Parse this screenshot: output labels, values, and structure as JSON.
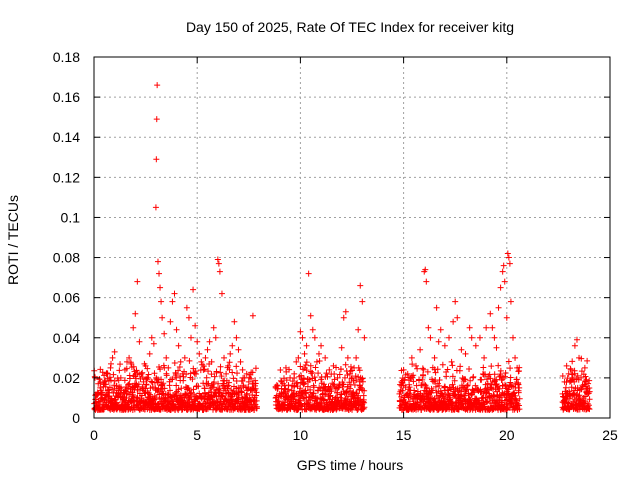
{
  "chart_data": {
    "type": "scatter",
    "title": "Day 150 of 2025, Rate Of TEC Index for receiver kitg",
    "xlabel": "GPS time / hours",
    "ylabel": "ROTI / TECUs",
    "xlim": [
      0,
      25
    ],
    "ylim": [
      0,
      0.18
    ],
    "x_ticks": [
      0,
      5,
      10,
      15,
      20,
      25
    ],
    "x_tick_labels": [
      "0",
      "5",
      "10",
      "15",
      "20",
      "25"
    ],
    "y_ticks": [
      0,
      0.02,
      0.04,
      0.06,
      0.08,
      0.1,
      0.12,
      0.14,
      0.16,
      0.18
    ],
    "y_tick_labels": [
      "0",
      "0.02",
      "0.04",
      "0.06",
      "0.08",
      "0.1",
      "0.12",
      "0.14",
      "0.16",
      "0.18"
    ],
    "grid": true,
    "marker": "+",
    "color": "#ff0000",
    "series": [
      {
        "name": "ROTI",
        "points": [
          [
            0.1,
            0.008
          ],
          [
            0.2,
            0.012
          ],
          [
            0.3,
            0.015
          ],
          [
            0.4,
            0.01
          ],
          [
            0.5,
            0.018
          ],
          [
            0.6,
            0.022
          ],
          [
            0.7,
            0.014
          ],
          [
            0.8,
            0.025
          ],
          [
            0.9,
            0.03
          ],
          [
            1.0,
            0.033
          ],
          [
            1.1,
            0.016
          ],
          [
            1.2,
            0.012
          ],
          [
            1.3,
            0.02
          ],
          [
            1.4,
            0.009
          ],
          [
            1.5,
            0.024
          ],
          [
            1.6,
            0.028
          ],
          [
            1.7,
            0.03
          ],
          [
            1.8,
            0.027
          ],
          [
            1.9,
            0.045
          ],
          [
            2.0,
            0.052
          ],
          [
            2.1,
            0.068
          ],
          [
            2.2,
            0.038
          ],
          [
            2.3,
            0.022
          ],
          [
            2.4,
            0.018
          ],
          [
            2.5,
            0.026
          ],
          [
            2.6,
            0.02
          ],
          [
            2.7,
            0.032
          ],
          [
            2.8,
            0.04
          ],
          [
            2.9,
            0.037
          ],
          [
            3.0,
            0.105
          ],
          [
            3.02,
            0.129
          ],
          [
            3.04,
            0.149
          ],
          [
            3.06,
            0.166
          ],
          [
            3.1,
            0.078
          ],
          [
            3.15,
            0.072
          ],
          [
            3.2,
            0.065
          ],
          [
            3.25,
            0.058
          ],
          [
            3.3,
            0.05
          ],
          [
            3.4,
            0.042
          ],
          [
            3.5,
            0.03
          ],
          [
            3.6,
            0.025
          ],
          [
            3.7,
            0.048
          ],
          [
            3.8,
            0.058
          ],
          [
            3.9,
            0.062
          ],
          [
            4.0,
            0.044
          ],
          [
            4.1,
            0.036
          ],
          [
            4.2,
            0.028
          ],
          [
            4.3,
            0.022
          ],
          [
            4.4,
            0.03
          ],
          [
            4.5,
            0.055
          ],
          [
            4.6,
            0.05
          ],
          [
            4.7,
            0.04
          ],
          [
            4.8,
            0.064
          ],
          [
            4.9,
            0.046
          ],
          [
            5.0,
            0.038
          ],
          [
            5.1,
            0.032
          ],
          [
            5.2,
            0.028
          ],
          [
            5.3,
            0.024
          ],
          [
            5.4,
            0.03
          ],
          [
            5.5,
            0.034
          ],
          [
            5.6,
            0.038
          ],
          [
            5.7,
            0.028
          ],
          [
            5.8,
            0.045
          ],
          [
            5.9,
            0.04
          ],
          [
            6.0,
            0.079
          ],
          [
            6.05,
            0.077
          ],
          [
            6.1,
            0.073
          ],
          [
            6.2,
            0.062
          ],
          [
            6.3,
            0.03
          ],
          [
            6.4,
            0.022
          ],
          [
            6.5,
            0.026
          ],
          [
            6.6,
            0.032
          ],
          [
            6.7,
            0.036
          ],
          [
            6.8,
            0.048
          ],
          [
            6.9,
            0.04
          ],
          [
            7.0,
            0.034
          ],
          [
            7.1,
            0.028
          ],
          [
            7.2,
            0.024
          ],
          [
            7.3,
            0.02
          ],
          [
            7.4,
            0.022
          ],
          [
            7.5,
            0.018
          ],
          [
            7.6,
            0.014
          ],
          [
            7.7,
            0.051
          ],
          [
            7.8,
            0.016
          ],
          [
            8.8,
            0.01
          ],
          [
            8.9,
            0.016
          ],
          [
            9.0,
            0.012
          ],
          [
            9.1,
            0.018
          ],
          [
            9.3,
            0.025
          ],
          [
            9.5,
            0.02
          ],
          [
            9.6,
            0.016
          ],
          [
            9.7,
            0.022
          ],
          [
            9.8,
            0.028
          ],
          [
            9.9,
            0.03
          ],
          [
            10.0,
            0.043
          ],
          [
            10.1,
            0.04
          ],
          [
            10.2,
            0.032
          ],
          [
            10.3,
            0.036
          ],
          [
            10.4,
            0.072
          ],
          [
            10.5,
            0.051
          ],
          [
            10.6,
            0.044
          ],
          [
            10.7,
            0.04
          ],
          [
            10.8,
            0.028
          ],
          [
            10.9,
            0.032
          ],
          [
            11.0,
            0.036
          ],
          [
            11.2,
            0.03
          ],
          [
            11.4,
            0.024
          ],
          [
            11.6,
            0.026
          ],
          [
            11.8,
            0.02
          ],
          [
            12.0,
            0.035
          ],
          [
            12.1,
            0.05
          ],
          [
            12.2,
            0.053
          ],
          [
            12.3,
            0.03
          ],
          [
            12.4,
            0.022
          ],
          [
            12.5,
            0.02
          ],
          [
            12.6,
            0.025
          ],
          [
            12.7,
            0.03
          ],
          [
            12.8,
            0.044
          ],
          [
            12.9,
            0.066
          ],
          [
            13.0,
            0.058
          ],
          [
            13.1,
            0.04
          ],
          [
            14.8,
            0.012
          ],
          [
            14.9,
            0.018
          ],
          [
            15.0,
            0.024
          ],
          [
            15.2,
            0.022
          ],
          [
            15.4,
            0.03
          ],
          [
            15.6,
            0.026
          ],
          [
            15.8,
            0.034
          ],
          [
            16.0,
            0.073
          ],
          [
            16.05,
            0.074
          ],
          [
            16.1,
            0.068
          ],
          [
            16.2,
            0.045
          ],
          [
            16.3,
            0.04
          ],
          [
            16.5,
            0.03
          ],
          [
            16.6,
            0.055
          ],
          [
            16.7,
            0.038
          ],
          [
            16.8,
            0.044
          ],
          [
            17.0,
            0.036
          ],
          [
            17.2,
            0.04
          ],
          [
            17.4,
            0.048
          ],
          [
            17.5,
            0.058
          ],
          [
            17.6,
            0.05
          ],
          [
            17.8,
            0.034
          ],
          [
            18.0,
            0.032
          ],
          [
            18.2,
            0.045
          ],
          [
            18.3,
            0.04
          ],
          [
            18.5,
            0.036
          ],
          [
            18.7,
            0.04
          ],
          [
            18.9,
            0.03
          ],
          [
            19.0,
            0.045
          ],
          [
            19.2,
            0.052
          ],
          [
            19.3,
            0.045
          ],
          [
            19.4,
            0.04
          ],
          [
            19.5,
            0.035
          ],
          [
            19.6,
            0.055
          ],
          [
            19.7,
            0.065
          ],
          [
            19.8,
            0.073
          ],
          [
            19.85,
            0.076
          ],
          [
            19.9,
            0.068
          ],
          [
            20.0,
            0.05
          ],
          [
            20.05,
            0.082
          ],
          [
            20.1,
            0.08
          ],
          [
            20.15,
            0.077
          ],
          [
            20.2,
            0.058
          ],
          [
            20.3,
            0.04
          ],
          [
            20.4,
            0.03
          ],
          [
            20.5,
            0.025
          ],
          [
            20.6,
            0.015
          ],
          [
            22.7,
            0.012
          ],
          [
            22.8,
            0.018
          ],
          [
            22.9,
            0.026
          ],
          [
            23.0,
            0.022
          ],
          [
            23.1,
            0.024
          ],
          [
            23.2,
            0.02
          ],
          [
            23.3,
            0.036
          ],
          [
            23.4,
            0.039
          ],
          [
            23.5,
            0.03
          ],
          [
            23.6,
            0.02
          ],
          [
            23.8,
            0.018
          ],
          [
            23.9,
            0.012
          ]
        ]
      }
    ]
  }
}
